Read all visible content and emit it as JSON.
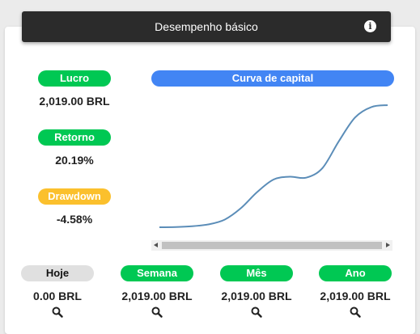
{
  "header": {
    "title": "Desempenho básico",
    "info_icon": "info-icon"
  },
  "metrics": {
    "lucro": {
      "label": "Lucro",
      "value": "2,019.00 BRL",
      "color": "#00c853"
    },
    "retorno": {
      "label": "Retorno",
      "value": "20.19%",
      "color": "#00c853"
    },
    "drawdown": {
      "label": "Drawdown",
      "value": "-4.58%",
      "color": "#fbc02d"
    }
  },
  "chart": {
    "label": "Curva de capital",
    "color": "#4285f4",
    "line_color": "#5b8db8"
  },
  "chart_data": {
    "type": "line",
    "title": "Curva de capital",
    "xlabel": "",
    "ylabel": "",
    "grid": false,
    "series": [
      {
        "values": [
          0,
          0.2,
          1,
          3,
          8,
          20,
          37,
          50,
          53,
          52,
          62,
          90,
          115,
          126,
          128
        ]
      }
    ]
  },
  "periods": [
    {
      "label": "Hoje",
      "value": "0.00 BRL",
      "active": false,
      "icon": "search-icon"
    },
    {
      "label": "Semana",
      "value": "2,019.00 BRL",
      "active": true,
      "icon": "search-icon"
    },
    {
      "label": "Mês",
      "value": "2,019.00 BRL",
      "active": true,
      "icon": "search-icon"
    },
    {
      "label": "Ano",
      "value": "2,019.00 BRL",
      "active": true,
      "icon": "search-icon"
    }
  ]
}
